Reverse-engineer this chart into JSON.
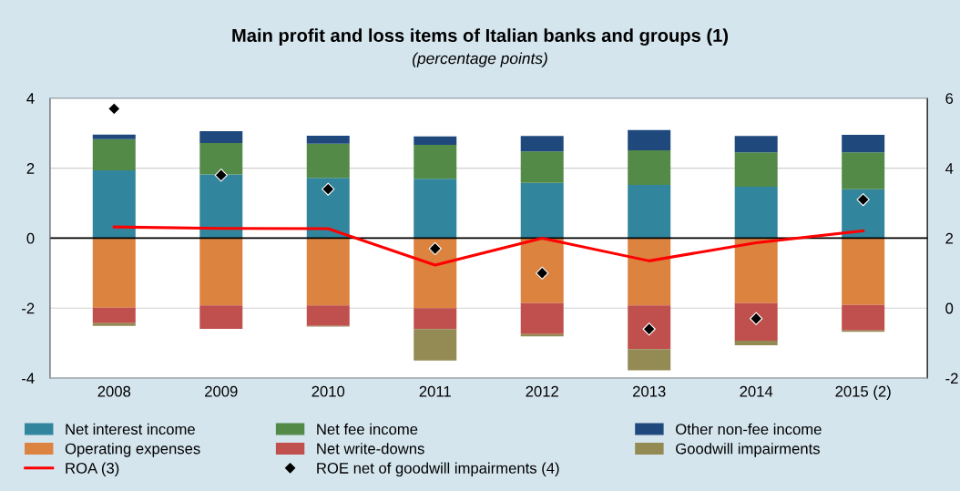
{
  "chart_data": {
    "type": "bar",
    "stacked": true,
    "title": "Main profit and loss items of Italian banks and groups (1)",
    "subtitle": "(percentage points)",
    "categories": [
      "2008",
      "2009",
      "2010",
      "2011",
      "2012",
      "2013",
      "2014",
      "2015 (2)"
    ],
    "series": [
      {
        "name": "Net interest income",
        "color": "#31859c",
        "values": [
          1.94,
          1.82,
          1.72,
          1.7,
          1.58,
          1.52,
          1.47,
          1.4
        ]
      },
      {
        "name": "Operating expenses",
        "color": "#dc8340",
        "values": [
          -1.99,
          -1.92,
          -1.92,
          -2.0,
          -1.86,
          -1.92,
          -1.86,
          -1.91
        ]
      },
      {
        "name": "ROA (3)",
        "type": "line",
        "color": "#ff0000",
        "values": [
          0.32,
          0.28,
          0.27,
          -0.77,
          0.0,
          -0.65,
          -0.13,
          0.21
        ]
      },
      {
        "name": "Net fee income",
        "color": "#538a48",
        "values": [
          0.89,
          0.9,
          0.98,
          0.97,
          0.9,
          0.99,
          0.98,
          1.05
        ]
      },
      {
        "name": "Net write-downs",
        "color": "#c0504d",
        "values": [
          -0.44,
          -0.67,
          -0.59,
          -0.6,
          -0.88,
          -1.25,
          -1.07,
          -0.73
        ]
      },
      {
        "name": "ROE net of goodwill impairments (4)",
        "type": "scatter",
        "axis": "y2",
        "marker": "diamond",
        "color": "#000000",
        "values": [
          5.7,
          3.8,
          3.4,
          1.7,
          1.0,
          -0.6,
          -0.3,
          3.1
        ]
      },
      {
        "name": "Other non-fee income",
        "color": "#1f497d",
        "values": [
          0.13,
          0.34,
          0.23,
          0.24,
          0.44,
          0.58,
          0.47,
          0.5
        ]
      },
      {
        "name": "Goodwill impairments",
        "color": "#948a54",
        "values": [
          -0.08,
          0.0,
          -0.02,
          -0.9,
          -0.07,
          -0.61,
          -0.13,
          -0.04
        ]
      }
    ],
    "ylim": [
      -4,
      4
    ],
    "yticks": [
      -4,
      -2,
      0,
      2,
      4
    ],
    "y2lim": [
      -2,
      6
    ],
    "y2ticks": [
      -2,
      0,
      2,
      4,
      6
    ],
    "ref_lines": [
      {
        "axis": "y",
        "value": 0,
        "color": "#000000"
      }
    ],
    "grid": "y",
    "legend": "bottom"
  }
}
